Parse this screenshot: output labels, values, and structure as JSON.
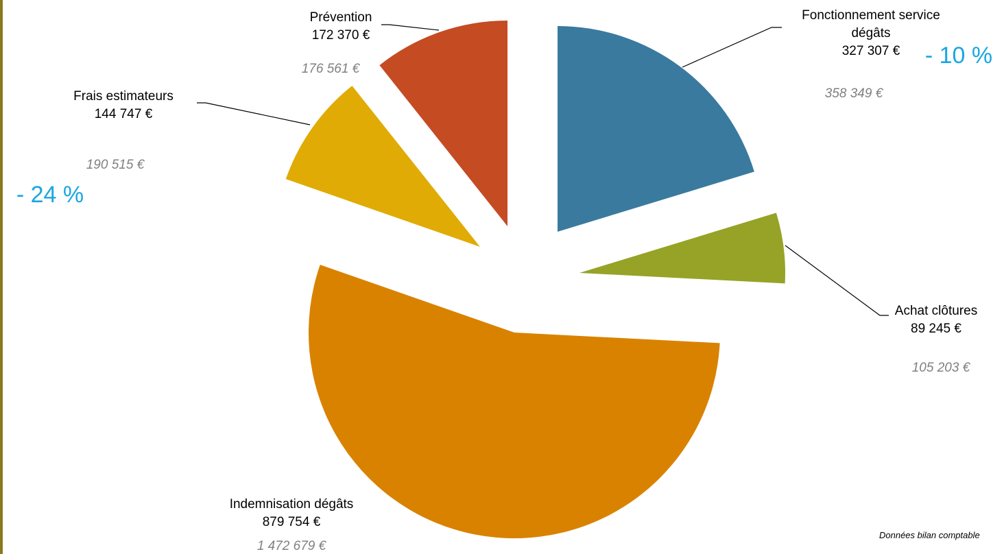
{
  "chart_data": {
    "type": "pie",
    "title": "",
    "exploded": true,
    "slices": [
      {
        "label": "Fonctionnement service dégâts",
        "label_lines": [
          "Fonctionnement service",
          "dégâts"
        ],
        "value": 327307,
        "value_label": "327 307 €",
        "previous_value_label": "358 349 €",
        "change_label": "- 10 %",
        "color": "#3a7a9e"
      },
      {
        "label": "Achat clôtures",
        "label_lines": [
          "Achat clôtures"
        ],
        "value": 89245,
        "value_label": "89 245 €",
        "previous_value_label": "105 203 €",
        "change_label": "",
        "color": "#96a326"
      },
      {
        "label": "Indemnisation dégâts",
        "label_lines": [
          "Indemnisation dégâts"
        ],
        "value": 879754,
        "value_label": "879 754 €",
        "previous_value_label": "1 472 679 €",
        "change_label": "",
        "color": "#d98200"
      },
      {
        "label": "Frais estimateurs",
        "label_lines": [
          "Frais estimateurs"
        ],
        "value": 144747,
        "value_label": "144 747 €",
        "previous_value_label": "190 515 €",
        "change_label": "- 24 %",
        "color": "#e0ab05"
      },
      {
        "label": "Prévention",
        "label_lines": [
          "Prévention"
        ],
        "value": 172370,
        "value_label": "172 370 €",
        "previous_value_label": "176 561 €",
        "change_label": "",
        "color": "#c54b23"
      }
    ],
    "legend": "none"
  },
  "footnote": "Données bilan comptable"
}
